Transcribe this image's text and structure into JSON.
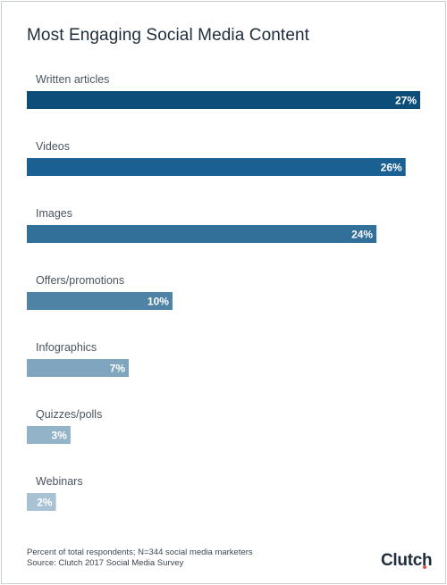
{
  "title": "Most Engaging Social Media Content",
  "footnote": "Percent of total respondents; N=344 social media marketers",
  "source": "Source: Clutch 2017 Social Media Survey",
  "brand": "Clutch",
  "colors": {
    "bars": [
      "#0c4d7a",
      "#1a6092",
      "#326f99",
      "#4f83a6",
      "#7fa5bf",
      "#93b3c9",
      "#a9c2d3"
    ],
    "label_text": "#4a5560",
    "value_text": "#ffffff",
    "brand_accent": "#e2513a"
  },
  "chart_data": {
    "type": "bar",
    "orientation": "horizontal",
    "title": "Most Engaging Social Media Content",
    "categories": [
      "Written articles",
      "Videos",
      "Images",
      "Offers/promotions",
      "Infographics",
      "Quizzes/polls",
      "Webinars"
    ],
    "values": [
      27,
      26,
      24,
      10,
      7,
      3,
      2
    ],
    "value_labels": [
      "27%",
      "26%",
      "24%",
      "10%",
      "7%",
      "3%",
      "2%"
    ],
    "xlim": [
      0,
      27
    ],
    "grid": false,
    "legend": "none"
  }
}
